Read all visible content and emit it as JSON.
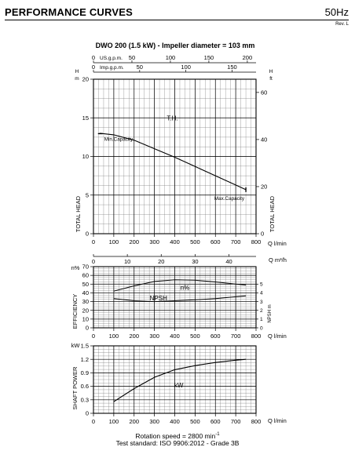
{
  "header": {
    "section_title": "PERFORMANCE CURVES",
    "frequency": "50Hz",
    "revision": "Rev. L"
  },
  "footer": {
    "rotation": "Rotation speed = 2800 min",
    "rotation_sup": "-1",
    "standard": "Test standard: ISO 9906:2012 - Grade 3B"
  },
  "chart_data": [
    {
      "type": "line",
      "title": "DWO 200 (1.5 kW) - Impeller diameter = 103 mm",
      "xlabel": "Q l/min",
      "x_unit": "Q l/min",
      "xlim": [
        0,
        800
      ],
      "x_ticks": [
        0,
        100,
        200,
        300,
        400,
        500,
        600,
        700,
        800
      ],
      "ylabel": "TOTAL HEAD",
      "y_unit": "H m",
      "ylim": [
        0,
        20
      ],
      "y_ticks": [
        0,
        5,
        10,
        15,
        20
      ],
      "y2label": "TOTAL HEAD",
      "y2_unit": "H ft",
      "y2_ticks": [
        0,
        20,
        40,
        60
      ],
      "top_axes": [
        {
          "label": "US.g.p.m.",
          "ticks": [
            0,
            50,
            100,
            150,
            200
          ],
          "lpm_per_unit": 3.78541
        },
        {
          "label": "Imp.g.p.m.",
          "ticks": [
            0,
            50,
            100,
            150
          ],
          "lpm_per_unit": 4.54609
        }
      ],
      "grid": true,
      "series": [
        {
          "name": "T.H.",
          "x": [
            30,
            100,
            200,
            300,
            400,
            500,
            600,
            700,
            750
          ],
          "y": [
            13.0,
            12.8,
            12.1,
            11.0,
            9.9,
            8.7,
            7.5,
            6.3,
            5.7
          ]
        }
      ],
      "annotations": [
        {
          "text": "Min.Capacity",
          "x": 30,
          "y": 12.95
        },
        {
          "text": "Max.Capacity",
          "x": 750,
          "y": 5.7
        },
        {
          "text": "T.H.",
          "x": 400,
          "y": 15
        }
      ]
    },
    {
      "type": "line",
      "xlabel": "Q l/min",
      "x_unit": "Q l/min",
      "xlim": [
        0,
        800
      ],
      "x_ticks": [
        0,
        100,
        200,
        300,
        400,
        500,
        600,
        700,
        800
      ],
      "top_axis": {
        "label": "Q m³/h",
        "ticks": [
          0,
          10,
          20,
          30,
          40
        ],
        "lpm_per_unit": 16.6667
      },
      "ylabel": "EFFICIENCY",
      "y_unit": "n%",
      "ylim": [
        0,
        70
      ],
      "y_ticks": [
        0,
        10,
        20,
        30,
        40,
        50,
        60,
        70
      ],
      "y2_unit": "NPSH m",
      "y2_ticks": [
        0,
        1,
        2,
        3,
        4,
        5
      ],
      "grid": true,
      "series": [
        {
          "name": "n%",
          "x": [
            100,
            200,
            300,
            400,
            500,
            600,
            700,
            750
          ],
          "y": [
            42,
            48,
            53,
            55,
            54.5,
            52.5,
            50,
            49
          ]
        },
        {
          "name": "NPSH",
          "x": [
            100,
            200,
            300,
            400,
            500,
            600,
            700,
            750
          ],
          "y": [
            33.5,
            31,
            30,
            31,
            32,
            33.5,
            35.5,
            36.5
          ]
        }
      ],
      "annotations": [
        {
          "text": "n%",
          "x": 450,
          "y": 46
        },
        {
          "text": "NPSH",
          "x": 320,
          "y": 34
        }
      ]
    },
    {
      "type": "line",
      "xlabel": "Q l/min",
      "x_unit": "Q l/min",
      "xlim": [
        0,
        800
      ],
      "x_ticks": [
        0,
        100,
        200,
        300,
        400,
        500,
        600,
        700,
        800
      ],
      "ylabel": "SHAFT POWER",
      "y_unit": "kW",
      "ylim": [
        0,
        1.5
      ],
      "y_ticks": [
        "0",
        "0.3",
        "0.6",
        "0.9",
        "1.2",
        "1.5"
      ],
      "grid": true,
      "series": [
        {
          "name": "kW",
          "x": [
            100,
            200,
            300,
            400,
            500,
            600,
            700,
            750
          ],
          "y": [
            0.26,
            0.55,
            0.8,
            0.97,
            1.06,
            1.13,
            1.18,
            1.2
          ]
        }
      ],
      "annotations": [
        {
          "text": "kW",
          "x": 420,
          "y": 0.63
        }
      ]
    }
  ]
}
